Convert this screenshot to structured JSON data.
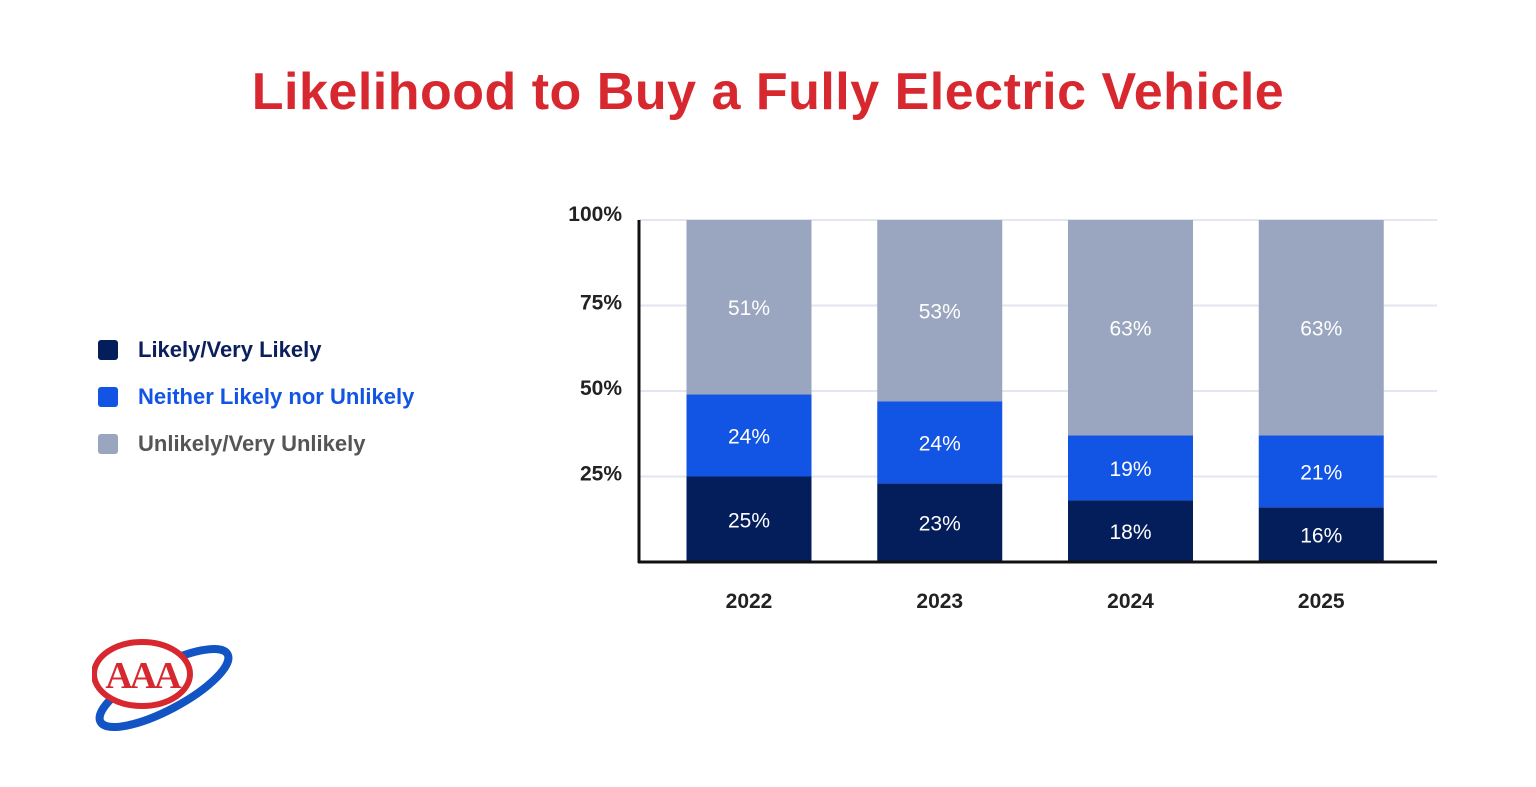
{
  "title": "Likelihood to Buy a Fully Electric Vehicle",
  "colors": {
    "title": "#d7282f",
    "likely": "#041e5b",
    "neither": "#1254e3",
    "unlikely": "#9aa6bf",
    "axis": "#111111",
    "grid": "#e3e6ef",
    "tick_label": "#222222",
    "likely_legend_text": "#0b1f5c",
    "neither_legend_text": "#1254e3",
    "unlikely_legend_text": "#555555",
    "logo_red": "#d7282f",
    "logo_blue": "#1254c4"
  },
  "legend": [
    {
      "label": "Likely/Very Likely",
      "series": "likely"
    },
    {
      "label": "Neither Likely nor Unlikely",
      "series": "neither"
    },
    {
      "label": "Unlikely/Very Unlikely",
      "series": "unlikely"
    }
  ],
  "logo": {
    "text": "AAA"
  },
  "chart_data": {
    "type": "bar",
    "stacked": true,
    "title": "Likelihood to Buy a Fully Electric Vehicle",
    "categories": [
      "2022",
      "2023",
      "2024",
      "2025"
    ],
    "series": [
      {
        "name": "Likely/Very Likely",
        "key": "likely",
        "values": [
          25,
          23,
          18,
          16
        ]
      },
      {
        "name": "Neither Likely nor Unlikely",
        "key": "neither",
        "values": [
          24,
          24,
          19,
          21
        ]
      },
      {
        "name": "Unlikely/Very Unlikely",
        "key": "unlikely",
        "values": [
          51,
          53,
          63,
          63
        ]
      }
    ],
    "ylim": [
      0,
      100
    ],
    "yticks": [
      25,
      50,
      75,
      100
    ],
    "ytick_labels": [
      "25%",
      "50%",
      "75%",
      "100%"
    ],
    "value_suffix": "%",
    "grid": true,
    "legend_position": "left"
  }
}
